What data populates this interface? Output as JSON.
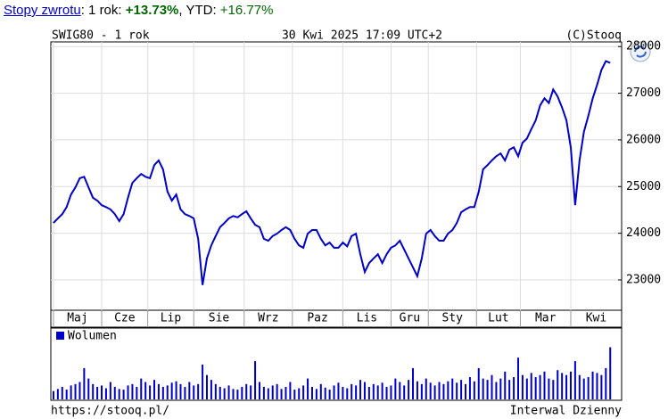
{
  "header": {
    "link": "Stopy zwrotu",
    "period_label": ": 1 rok: ",
    "period_return": "+13.73%",
    "ytd_label": ", YTD: ",
    "ytd_return": "+16.77%"
  },
  "footer": {
    "url": "https://stooq.pl/",
    "interval": "Interwal Dzienny"
  },
  "chart_data": [
    {
      "type": "line",
      "title": "SWIG80 - 1 rok",
      "subtitle": "30 Kwi 2025 17:09 UTC+2",
      "source": "(C)Stooq",
      "color": "#0000cc",
      "grid": true,
      "values": [
        24220,
        24320,
        24410,
        24560,
        24830,
        24980,
        25180,
        25210,
        24980,
        24760,
        24700,
        24600,
        24560,
        24510,
        24410,
        24260,
        24410,
        24760,
        25080,
        25180,
        25270,
        25210,
        25180,
        25460,
        25560,
        25370,
        24890,
        24700,
        24830,
        24510,
        24410,
        24370,
        24320,
        23880,
        22890,
        23460,
        23740,
        23940,
        24130,
        24220,
        24320,
        24370,
        24340,
        24410,
        24470,
        24320,
        24180,
        24130,
        23880,
        23840,
        23940,
        23990,
        24070,
        24130,
        24070,
        23880,
        23740,
        23690,
        23990,
        24070,
        24070,
        23880,
        23740,
        23800,
        23690,
        23690,
        23800,
        23720,
        23940,
        23990,
        23550,
        23170,
        23360,
        23460,
        23550,
        23360,
        23550,
        23690,
        23740,
        23840,
        23650,
        23460,
        23270,
        23080,
        23460,
        23990,
        24070,
        23940,
        23840,
        23840,
        23990,
        24070,
        24220,
        24450,
        24510,
        24560,
        24560,
        24890,
        25370,
        25460,
        25560,
        25650,
        25710,
        25560,
        25790,
        25840,
        25650,
        25940,
        26030,
        26230,
        26420,
        26740,
        26890,
        26790,
        27080,
        26930,
        26700,
        26420,
        25840,
        24600,
        25560,
        26170,
        26510,
        26890,
        27180,
        27500,
        27690,
        27650
      ],
      "xlim": [
        -0.6,
        129.6
      ],
      "xticks": [
        {
          "value": 0,
          "label": "Maj"
        },
        {
          "value": 11,
          "label": "Cze"
        },
        {
          "value": 21.5,
          "label": "Lip"
        },
        {
          "value": 32,
          "label": "Sie"
        },
        {
          "value": 43.5,
          "label": "Wrz"
        },
        {
          "value": 54.5,
          "label": "Paz"
        },
        {
          "value": 66,
          "label": "Lis"
        },
        {
          "value": 77,
          "label": "Gru"
        },
        {
          "value": 85.5,
          "label": "Sty"
        },
        {
          "value": 96.5,
          "label": "Lut"
        },
        {
          "value": 106.5,
          "label": "Mar"
        },
        {
          "value": 118,
          "label": "Kwi"
        }
      ],
      "ylim": [
        22350,
        28100
      ],
      "yticks": [
        23000,
        24000,
        25000,
        26000,
        27000,
        28000
      ]
    },
    {
      "type": "bar",
      "ylim": [
        0,
        100
      ],
      "xlim": [
        -0.6,
        129.6
      ],
      "series": [
        {
          "name": "Wolumen",
          "color": "#0000cc",
          "values": [
            12,
            15,
            18,
            14,
            20,
            22,
            25,
            45,
            30,
            22,
            18,
            20,
            16,
            25,
            18,
            15,
            14,
            20,
            22,
            18,
            30,
            25,
            20,
            28,
            22,
            18,
            20,
            24,
            26,
            22,
            18,
            25,
            20,
            22,
            50,
            35,
            28,
            22,
            18,
            16,
            20,
            15,
            14,
            18,
            22,
            20,
            55,
            25,
            18,
            16,
            20,
            22,
            15,
            18,
            25,
            14,
            16,
            20,
            30,
            18,
            15,
            22,
            17,
            14,
            20,
            24,
            18,
            16,
            22,
            20,
            28,
            25,
            18,
            22,
            20,
            24,
            18,
            20,
            30,
            25,
            20,
            28,
            45,
            26,
            22,
            30,
            24,
            20,
            25,
            22,
            26,
            30,
            24,
            28,
            22,
            32,
            26,
            45,
            30,
            28,
            35,
            25,
            30,
            40,
            28,
            32,
            60,
            35,
            30,
            38,
            32,
            35,
            40,
            30,
            28,
            42,
            38,
            35,
            40,
            55,
            35,
            30,
            32,
            40,
            38,
            35,
            45,
            75
          ]
        }
      ]
    }
  ]
}
